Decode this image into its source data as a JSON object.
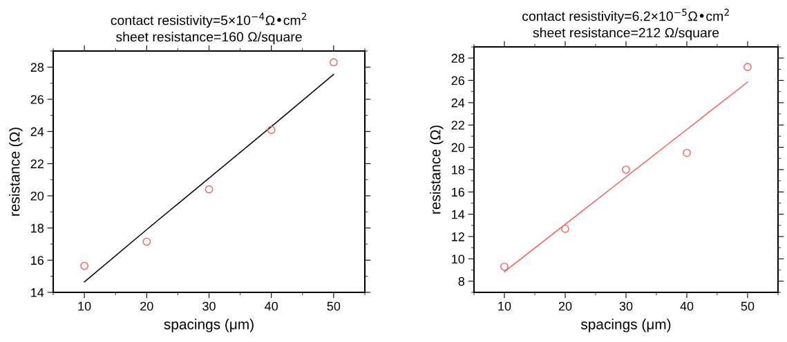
{
  "chart_data": [
    {
      "type": "scatter",
      "title": "contact resistivity=5×10$^{−4}$Ω•cm$^{2}$\nsheet resistance=160 Ω/square",
      "xlabel": "spacings (μm)",
      "ylabel": "resistance (Ω)",
      "x": [
        10,
        20,
        30,
        40,
        50
      ],
      "xlim": [
        5,
        55
      ],
      "xticks": [
        10,
        20,
        30,
        40,
        50
      ],
      "ylim": [
        14,
        29
      ],
      "yticks": [
        14,
        16,
        18,
        20,
        22,
        24,
        26,
        28
      ],
      "series": [
        {
          "color": "#ff5a5a",
          "marker": "circle",
          "values": [
            15.65,
            17.15,
            20.4,
            24.1,
            28.3
          ]
        },
        {
          "type": "line",
          "color": "#000000",
          "values": [
            14.65,
            17.9,
            21.1,
            24.3,
            27.55
          ]
        }
      ]
    },
    {
      "type": "scatter",
      "title": "contact resistivity=6.2×10$^{−5}$Ω•cm$^{2}$\nsheet resistance=212 Ω/square",
      "xlabel": "spacings (μm)",
      "ylabel": "resistance (Ω)",
      "x": [
        10,
        20,
        30,
        40,
        50
      ],
      "xlim": [
        5,
        55
      ],
      "xticks": [
        10,
        20,
        30,
        40,
        50
      ],
      "ylim": [
        7,
        29
      ],
      "yticks": [
        8,
        10,
        12,
        14,
        16,
        18,
        20,
        22,
        24,
        26,
        28
      ],
      "series": [
        {
          "color": "#ff5a5a",
          "marker": "circle",
          "values": [
            9.3,
            12.7,
            18.0,
            19.5,
            27.2
          ]
        },
        {
          "type": "line",
          "color": "#ff5a5a",
          "values": [
            8.85,
            13.1,
            17.35,
            21.6,
            25.85
          ]
        }
      ]
    }
  ]
}
